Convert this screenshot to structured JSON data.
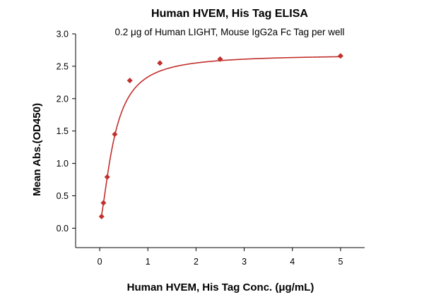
{
  "chart_data": {
    "type": "scatter",
    "title": "Human HVEM, His Tag ELISA",
    "subtitle": "0.2 μg of Human LIGHT, Mouse IgG2a Fc Tag per well",
    "xlabel": "Human HVEM, His Tag Conc. (μg/mL)",
    "ylabel": "Mean Abs.(OD450)",
    "xlim": [
      -0.5,
      5.5
    ],
    "ylim": [
      -0.3,
      3.0
    ],
    "x_ticks": [
      0,
      1,
      2,
      3,
      4,
      5
    ],
    "y_ticks": [
      0.0,
      0.5,
      1.0,
      1.5,
      2.0,
      2.5,
      3.0
    ],
    "x_tick_labels": [
      "0",
      "1",
      "2",
      "3",
      "4",
      "5"
    ],
    "y_tick_labels": [
      "0.0",
      "0.5",
      "1.0",
      "1.5",
      "2.0",
      "2.5",
      "3.0"
    ],
    "grid": false,
    "series": [
      {
        "x": [
          0.039,
          0.078,
          0.156,
          0.313,
          0.625,
          1.25,
          2.5,
          5.0
        ],
        "y": [
          0.18,
          0.39,
          0.79,
          1.45,
          2.28,
          2.55,
          2.61,
          2.66
        ],
        "color": "#c0302c",
        "marker": "diamond",
        "fit": "4PL"
      }
    ]
  }
}
